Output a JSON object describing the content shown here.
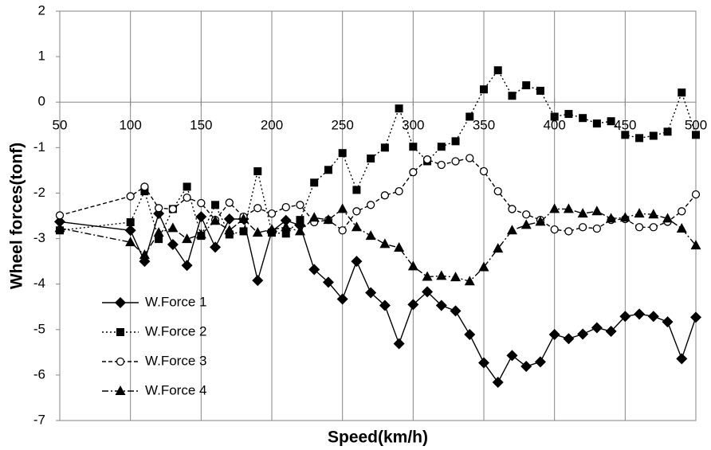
{
  "chart_data": {
    "type": "line",
    "x_label": "Speed(km/h)",
    "y_label": "Wheel forces(tonf)",
    "x": [
      50,
      100,
      110,
      120,
      130,
      140,
      150,
      160,
      170,
      180,
      190,
      200,
      210,
      220,
      230,
      240,
      250,
      260,
      270,
      280,
      290,
      300,
      310,
      320,
      330,
      340,
      350,
      360,
      370,
      380,
      390,
      400,
      410,
      420,
      430,
      440,
      450,
      460,
      470,
      480,
      490,
      500
    ],
    "xlim": [
      50,
      500
    ],
    "xticks": [
      50,
      100,
      150,
      200,
      250,
      300,
      350,
      400,
      450,
      500
    ],
    "ylim": [
      -7,
      2
    ],
    "yticks": [
      -7,
      -6,
      -5,
      -4,
      -3,
      -2,
      -1,
      0,
      1,
      2
    ],
    "grid": "x",
    "legend": "lower left",
    "series": [
      {
        "name": "W.Force 1",
        "color": "#000000",
        "dash": "solid",
        "marker": "diamond",
        "values": [
          -2.63,
          -2.82,
          -3.5,
          -2.45,
          -3.13,
          -3.59,
          -2.52,
          -3.19,
          -2.57,
          -2.57,
          -3.92,
          -2.84,
          -2.6,
          -2.71,
          -3.68,
          -3.96,
          -4.33,
          -3.5,
          -4.19,
          -4.47,
          -5.31,
          -4.45,
          -4.17,
          -4.47,
          -4.59,
          -5.11,
          -5.73,
          -6.16,
          -5.57,
          -5.81,
          -5.71,
          -5.11,
          -5.2,
          -5.1,
          -4.96,
          -5.04,
          -4.71,
          -4.66,
          -4.71,
          -4.83,
          -5.64,
          -4.73
        ]
      },
      {
        "name": "W.Force 2",
        "color": "#000000",
        "dash": "dotted",
        "marker": "square",
        "values": [
          -2.82,
          -2.64,
          -1.96,
          -3.01,
          -2.35,
          -1.86,
          -2.94,
          -2.26,
          -2.91,
          -2.84,
          -1.52,
          -2.87,
          -2.89,
          -2.59,
          -1.77,
          -1.49,
          -1.12,
          -1.93,
          -1.24,
          -1.0,
          -0.14,
          -0.98,
          -1.3,
          -0.98,
          -0.86,
          -0.32,
          0.28,
          0.7,
          0.14,
          0.37,
          0.25,
          -0.32,
          -0.26,
          -0.35,
          -0.47,
          -0.42,
          -0.72,
          -0.79,
          -0.74,
          -0.65,
          0.21,
          -0.72
        ]
      },
      {
        "name": "W.Force 3",
        "color": "#000000",
        "dash": "dashed",
        "marker": "circle",
        "values": [
          -2.49,
          -2.07,
          -1.86,
          -2.33,
          -2.35,
          -2.1,
          -2.22,
          -2.59,
          -2.21,
          -2.52,
          -2.33,
          -2.45,
          -2.31,
          -2.26,
          -2.64,
          -2.59,
          -2.82,
          -2.4,
          -2.26,
          -2.05,
          -1.96,
          -1.54,
          -1.26,
          -1.38,
          -1.3,
          -1.23,
          -1.52,
          -1.96,
          -2.35,
          -2.47,
          -2.59,
          -2.8,
          -2.84,
          -2.75,
          -2.78,
          -2.59,
          -2.57,
          -2.75,
          -2.75,
          -2.63,
          -2.4,
          -2.03
        ]
      },
      {
        "name": "W.Force 4",
        "color": "#000000",
        "dash": "dashdot",
        "marker": "triangle",
        "values": [
          -2.77,
          -3.08,
          -3.36,
          -2.87,
          -2.77,
          -3.01,
          -2.91,
          -2.61,
          -2.82,
          -2.57,
          -2.87,
          -2.8,
          -2.75,
          -2.84,
          -2.54,
          -2.59,
          -2.35,
          -2.75,
          -2.94,
          -3.12,
          -3.2,
          -3.61,
          -3.84,
          -3.82,
          -3.85,
          -3.94,
          -3.63,
          -3.22,
          -2.82,
          -2.7,
          -2.63,
          -2.35,
          -2.35,
          -2.45,
          -2.4,
          -2.56,
          -2.54,
          -2.45,
          -2.47,
          -2.56,
          -2.78,
          -3.15
        ]
      }
    ]
  }
}
